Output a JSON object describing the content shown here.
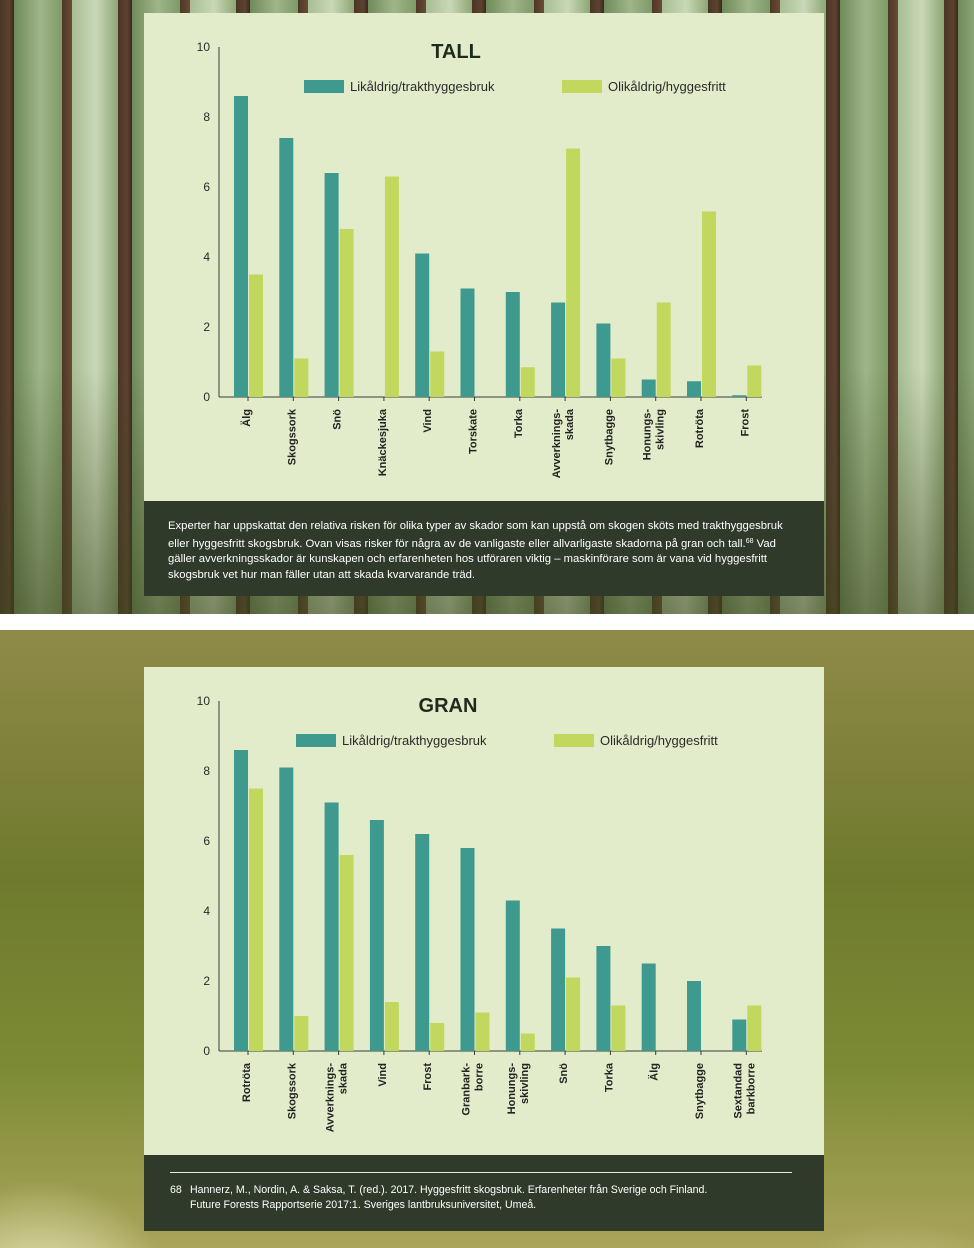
{
  "colors": {
    "series_1": "#3e9a8e",
    "series_2": "#c1d75e",
    "panel": "#e3ecca",
    "caption_bg": "#2f3a2b"
  },
  "caption": {
    "text": "Experter har uppskattat den relativa risken för olika typer av skador som kan uppstå om skogen sköts med trakthyggesbruk eller hyggesfritt skogsbruk. Ovan visas risker för några av de vanligaste eller allvarligaste skadorna på gran och tall.",
    "ref": "68",
    "text2": " Vad gäller avverkningsskador är kunskapen och erfarenheten hos utföraren viktig – maskinförare som är vana vid hyggesfritt skogsbruk vet hur man fäller utan att skada kvarvarande träd."
  },
  "footnote": {
    "number": "68",
    "line1": "Hannerz, M., Nordin, A. & Saksa, T. (red.). 2017. Hyggesfritt skogsbruk. Erfarenheter från Sverige och Finland.",
    "line2": "Future Forests Rapportserie 2017:1. Sveriges lantbruksuniversitet, Umeå."
  },
  "chart_data": [
    {
      "type": "bar",
      "title": "TALL",
      "ylim": [
        0,
        10
      ],
      "yticks": [
        0,
        2,
        4,
        6,
        8,
        10
      ],
      "legend": "top",
      "grid": false,
      "categories": [
        "Älg",
        "Skogssork",
        "Snö",
        "Knäckesjuka",
        "Vind",
        "Torskate",
        "Torka",
        "Avverknings-\nskada",
        "Snytbagge",
        "Honungs-\nskivling",
        "Rotröta",
        "Frost"
      ],
      "series": [
        {
          "name": "Likåldrig/trakthyggesbruk",
          "values": [
            8.6,
            7.4,
            6.4,
            0,
            4.1,
            3.1,
            3.0,
            2.7,
            2.1,
            0.5,
            0.45,
            0.05
          ]
        },
        {
          "name": "Olikåldrig/hyggesfritt",
          "values": [
            3.5,
            1.1,
            4.8,
            6.3,
            1.3,
            0,
            0.85,
            7.1,
            1.1,
            2.7,
            5.3,
            0.9
          ]
        }
      ]
    },
    {
      "type": "bar",
      "title": "GRAN",
      "ylim": [
        0,
        10
      ],
      "yticks": [
        0,
        2,
        4,
        6,
        8,
        10
      ],
      "legend": "top",
      "grid": false,
      "categories": [
        "Rotröta",
        "Skogssork",
        "Avverknings-\nskada",
        "Vind",
        "Frost",
        "Granbark-\nborre",
        "Honungs-\nskivling",
        "Snö",
        "Torka",
        "Älg",
        "Snytbagge",
        "Sextandad\nbarkborre"
      ],
      "series": [
        {
          "name": "Likåldrig/trakthyggesbruk",
          "values": [
            8.6,
            8.1,
            7.1,
            6.6,
            6.2,
            5.8,
            4.3,
            3.5,
            3.0,
            2.5,
            2.0,
            0.9
          ]
        },
        {
          "name": "Olikåldrig/hyggesfritt",
          "values": [
            7.5,
            1.0,
            5.6,
            1.4,
            0.8,
            1.1,
            0.5,
            2.1,
            1.3,
            0,
            0,
            1.3
          ]
        }
      ]
    }
  ]
}
